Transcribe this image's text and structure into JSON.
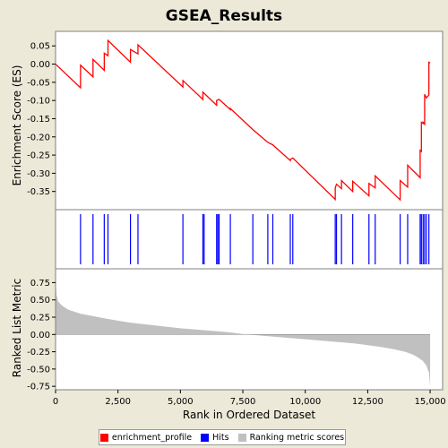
{
  "chart_data": {
    "type": "line",
    "title": "GSEA_Results",
    "xlabel": "Rank in Ordered Dataset",
    "xlim": [
      0,
      15500
    ],
    "x_ticks": [
      0,
      2500,
      5000,
      7500,
      10000,
      12500,
      15000
    ],
    "x_tick_labels": [
      "0",
      "2,500",
      "5,000",
      "7,500",
      "10,000",
      "12,500",
      "15,000"
    ],
    "panels": {
      "es": {
        "ylabel": "Enrichment Score (ES)",
        "ylim": [
          -0.4,
          0.09
        ],
        "y_ticks": [
          0.05,
          0.0,
          -0.05,
          -0.1,
          -0.15,
          -0.2,
          -0.25,
          -0.3,
          -0.35
        ],
        "y_tick_labels": [
          "0.05",
          "0.00",
          "-0.05",
          "-0.10",
          "-0.15",
          "-0.20",
          "-0.25",
          "-0.30",
          "-0.35"
        ]
      },
      "metric": {
        "ylabel": "Ranked List Metric",
        "ylim": [
          -0.8,
          0.95
        ],
        "y_ticks": [
          0.75,
          0.5,
          0.25,
          0.0,
          -0.25,
          -0.5,
          -0.75
        ],
        "y_tick_labels": [
          "0.75",
          "0.50",
          "0.25",
          "0.00",
          "-0.25",
          "-0.50",
          "-0.75"
        ]
      }
    },
    "series": [
      {
        "name": "enrichment_profile",
        "color": "#ff0000",
        "x": [
          0,
          1000,
          1000,
          1500,
          1500,
          1950,
          1950,
          2100,
          2100,
          3000,
          3000,
          3300,
          3300,
          5100,
          5100,
          5900,
          5900,
          6450,
          6450,
          6550,
          6550,
          7000,
          7000,
          7900,
          7900,
          8500,
          8500,
          8700,
          8700,
          9400,
          9400,
          9500,
          9500,
          11200,
          11200,
          11250,
          11250,
          11450,
          11450,
          11900,
          11900,
          12550,
          12550,
          12800,
          12800,
          13800,
          13800,
          14100,
          14100,
          14600,
          14600,
          14650,
          14650,
          14720,
          14720,
          14780,
          14780,
          14850,
          14850,
          14950,
          14950,
          15000
        ],
        "y": [
          0.0,
          -0.065,
          -0.003,
          -0.035,
          0.013,
          -0.017,
          0.03,
          0.023,
          0.065,
          0.005,
          0.04,
          0.028,
          0.053,
          -0.063,
          -0.045,
          -0.097,
          -0.077,
          -0.113,
          -0.1,
          -0.097,
          -0.097,
          -0.125,
          -0.122,
          -0.18,
          -0.18,
          -0.215,
          -0.215,
          -0.222,
          -0.222,
          -0.265,
          -0.262,
          -0.258,
          -0.258,
          -0.372,
          -0.34,
          -0.33,
          -0.33,
          -0.342,
          -0.32,
          -0.35,
          -0.322,
          -0.362,
          -0.328,
          -0.34,
          -0.307,
          -0.373,
          -0.32,
          -0.338,
          -0.278,
          -0.312,
          -0.237,
          -0.24,
          -0.16,
          -0.163,
          -0.16,
          -0.165,
          -0.083,
          -0.093,
          -0.093,
          -0.085,
          0.005,
          0.003
        ]
      },
      {
        "name": "Hits",
        "color": "#0000ff",
        "x": [
          1000,
          1500,
          1950,
          2100,
          3000,
          3300,
          5100,
          5900,
          5950,
          6450,
          6500,
          6550,
          7000,
          7900,
          8500,
          8700,
          9400,
          9500,
          11200,
          11250,
          11450,
          11900,
          12550,
          12800,
          13800,
          14100,
          14600,
          14650,
          14720,
          14780,
          14850,
          14950
        ]
      },
      {
        "name": "Ranking metric scores",
        "color": "#c0c0c0",
        "x": [
          0,
          30,
          100,
          250,
          500,
          1000,
          2000,
          3000,
          4000,
          5000,
          6000,
          7000,
          7600,
          8000,
          9000,
          10000,
          11000,
          12000,
          13000,
          13500,
          14000,
          14300,
          14500,
          14700,
          14850,
          14950,
          15000
        ],
        "y": [
          0.88,
          0.58,
          0.48,
          0.42,
          0.36,
          0.3,
          0.23,
          0.17,
          0.13,
          0.09,
          0.06,
          0.03,
          0.0,
          -0.01,
          -0.04,
          -0.07,
          -0.1,
          -0.13,
          -0.18,
          -0.21,
          -0.25,
          -0.29,
          -0.33,
          -0.38,
          -0.45,
          -0.55,
          -0.75
        ]
      }
    ],
    "legend": {
      "position": "bottom",
      "items": [
        "enrichment_profile",
        "Hits",
        "Ranking metric scores"
      ]
    }
  }
}
